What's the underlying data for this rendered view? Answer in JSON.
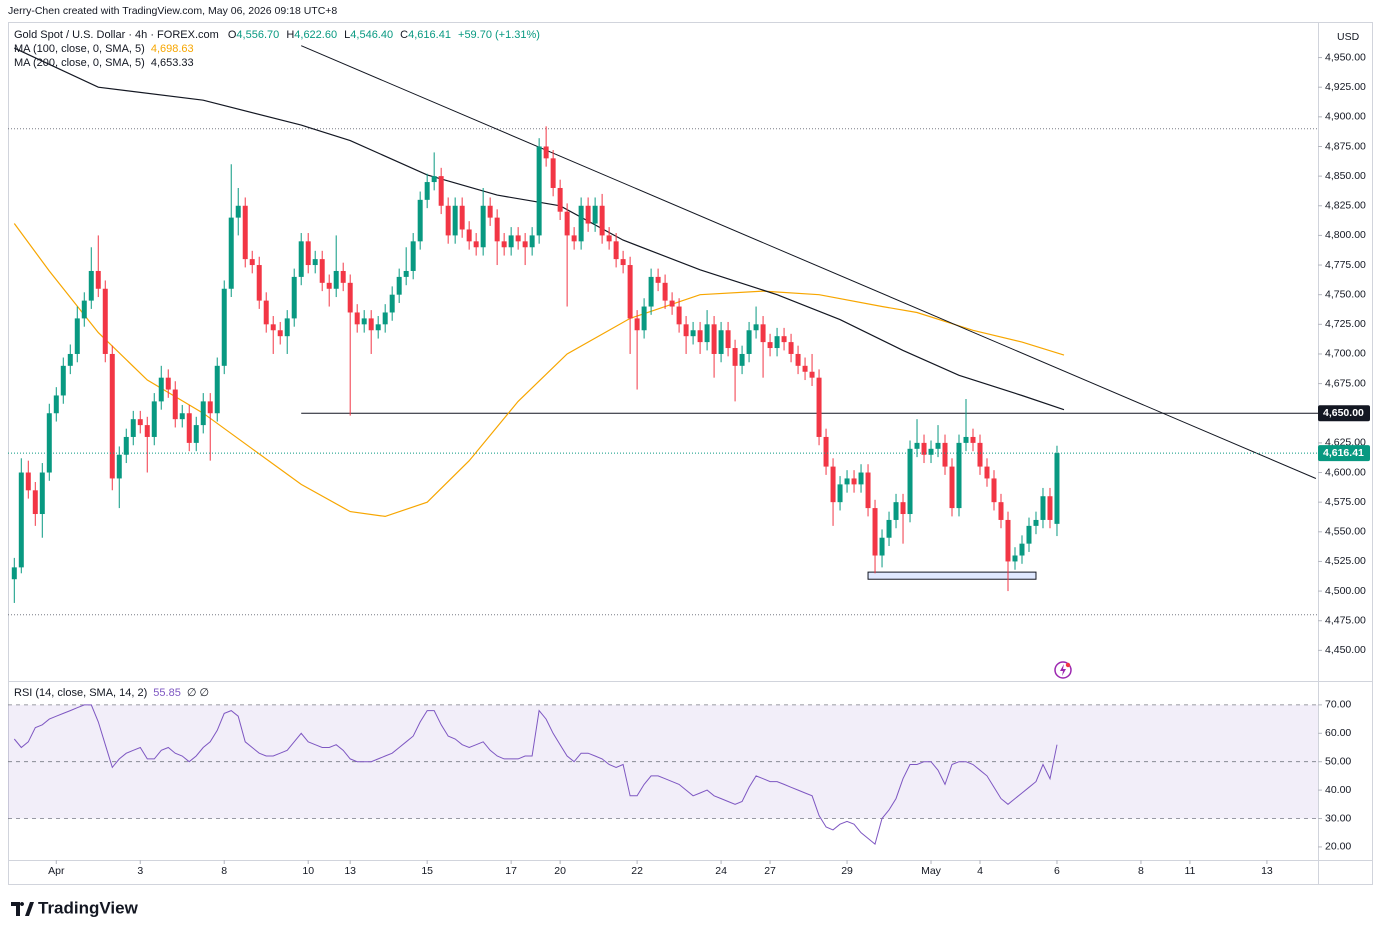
{
  "header": {
    "credit": "Jerry-Chen created with TradingView.com, May 06, 2026 09:18 UTC+8",
    "brand": "TradingView"
  },
  "chart_data": {
    "type": "candlestick",
    "legend": {
      "symbol": "Gold Spot / U.S. Dollar · 4h · FOREX.com",
      "ohlc_labels": [
        "O",
        "H",
        "L",
        "C"
      ],
      "open": "4,556.70",
      "high": "4,622.60",
      "low": "4,546.40",
      "close": "4,616.41",
      "change": "+59.70 (+1.31%)"
    },
    "currency": "USD",
    "up_color": "#089981",
    "down_color": "#f23645",
    "xlim": [
      -0.9,
      186.3
    ],
    "ylim": [
      4425,
      4980
    ],
    "yticks": [
      {
        "value": 4450,
        "label": "4,450.00"
      },
      {
        "value": 4475,
        "label": "4,475.00"
      },
      {
        "value": 4500,
        "label": "4,500.00"
      },
      {
        "value": 4525,
        "label": "4,525.00"
      },
      {
        "value": 4550,
        "label": "4,550.00"
      },
      {
        "value": 4575,
        "label": "4,575.00"
      },
      {
        "value": 4600,
        "label": "4,600.00"
      },
      {
        "value": 4625,
        "label": "4,625.00"
      },
      {
        "value": 4650,
        "label": "4,650.00"
      },
      {
        "value": 4675,
        "label": "4,675.00"
      },
      {
        "value": 4700,
        "label": "4,700.00"
      },
      {
        "value": 4725,
        "label": "4,725.00"
      },
      {
        "value": 4750,
        "label": "4,750.00"
      },
      {
        "value": 4775,
        "label": "4,775.00"
      },
      {
        "value": 4800,
        "label": "4,800.00"
      },
      {
        "value": 4825,
        "label": "4,825.00"
      },
      {
        "value": 4850,
        "label": "4,850.00"
      },
      {
        "value": 4875,
        "label": "4,875.00"
      },
      {
        "value": 4900,
        "label": "4,900.00"
      },
      {
        "value": 4925,
        "label": "4,925.00"
      },
      {
        "value": 4950,
        "label": "4,950.00"
      }
    ],
    "xticks": [
      {
        "value": 6,
        "label": "Apr"
      },
      {
        "value": 18,
        "label": "3"
      },
      {
        "value": 30,
        "label": "8"
      },
      {
        "value": 42,
        "label": "10"
      },
      {
        "value": 48,
        "label": "13"
      },
      {
        "value": 59,
        "label": "15"
      },
      {
        "value": 71,
        "label": "17"
      },
      {
        "value": 78,
        "label": "20"
      },
      {
        "value": 89,
        "label": "22"
      },
      {
        "value": 101,
        "label": "24"
      },
      {
        "value": 108,
        "label": "27"
      },
      {
        "value": 119,
        "label": "29"
      },
      {
        "value": 131,
        "label": "May"
      },
      {
        "value": 138,
        "label": "4"
      },
      {
        "value": 149,
        "label": "6"
      },
      {
        "value": 161,
        "label": "8"
      },
      {
        "value": 168,
        "label": "11"
      },
      {
        "value": 179,
        "label": "13"
      }
    ],
    "candles": [
      [
        4510,
        4528,
        4490,
        4520
      ],
      [
        4520,
        4612,
        4515,
        4600
      ],
      [
        4600,
        4610,
        4578,
        4585
      ],
      [
        4585,
        4592,
        4555,
        4565
      ],
      [
        4565,
        4608,
        4545,
        4600
      ],
      [
        4600,
        4658,
        4593,
        4650
      ],
      [
        4650,
        4672,
        4643,
        4665
      ],
      [
        4665,
        4697,
        4658,
        4690
      ],
      [
        4690,
        4708,
        4683,
        4700
      ],
      [
        4700,
        4740,
        4693,
        4730
      ],
      [
        4730,
        4752,
        4723,
        4745
      ],
      [
        4745,
        4790,
        4738,
        4770
      ],
      [
        4770,
        4800,
        4748,
        4755
      ],
      [
        4755,
        4762,
        4693,
        4700
      ],
      [
        4700,
        4707,
        4585,
        4595
      ],
      [
        4595,
        4622,
        4570,
        4615
      ],
      [
        4615,
        4637,
        4608,
        4630
      ],
      [
        4630,
        4652,
        4623,
        4645
      ],
      [
        4645,
        4652,
        4633,
        4640
      ],
      [
        4640,
        4647,
        4600,
        4630
      ],
      [
        4630,
        4667,
        4623,
        4660
      ],
      [
        4660,
        4690,
        4653,
        4680
      ],
      [
        4680,
        4687,
        4663,
        4670
      ],
      [
        4670,
        4677,
        4638,
        4645
      ],
      [
        4645,
        4657,
        4638,
        4650
      ],
      [
        4650,
        4657,
        4618,
        4625
      ],
      [
        4625,
        4647,
        4618,
        4640
      ],
      [
        4640,
        4667,
        4633,
        4660
      ],
      [
        4660,
        4667,
        4610,
        4650
      ],
      [
        4650,
        4697,
        4643,
        4690
      ],
      [
        4690,
        4762,
        4683,
        4755
      ],
      [
        4755,
        4860,
        4748,
        4815
      ],
      [
        4815,
        4840,
        4800,
        4825
      ],
      [
        4825,
        4832,
        4773,
        4780
      ],
      [
        4780,
        4787,
        4768,
        4775
      ],
      [
        4775,
        4782,
        4738,
        4745
      ],
      [
        4745,
        4752,
        4718,
        4725
      ],
      [
        4725,
        4732,
        4700,
        4720
      ],
      [
        4720,
        4727,
        4708,
        4715
      ],
      [
        4715,
        4737,
        4700,
        4730
      ],
      [
        4730,
        4772,
        4723,
        4765
      ],
      [
        4765,
        4802,
        4758,
        4795
      ],
      [
        4795,
        4802,
        4768,
        4775
      ],
      [
        4775,
        4787,
        4768,
        4780
      ],
      [
        4780,
        4787,
        4753,
        4760
      ],
      [
        4760,
        4767,
        4740,
        4755
      ],
      [
        4755,
        4800,
        4748,
        4770
      ],
      [
        4770,
        4777,
        4753,
        4760
      ],
      [
        4760,
        4767,
        4648,
        4735
      ],
      [
        4735,
        4742,
        4718,
        4725
      ],
      [
        4725,
        4737,
        4718,
        4730
      ],
      [
        4730,
        4737,
        4700,
        4720
      ],
      [
        4720,
        4732,
        4713,
        4725
      ],
      [
        4725,
        4742,
        4718,
        4735
      ],
      [
        4735,
        4757,
        4728,
        4750
      ],
      [
        4750,
        4772,
        4743,
        4765
      ],
      [
        4765,
        4790,
        4758,
        4770
      ],
      [
        4770,
        4802,
        4763,
        4795
      ],
      [
        4795,
        4837,
        4788,
        4830
      ],
      [
        4830,
        4852,
        4823,
        4845
      ],
      [
        4845,
        4870,
        4838,
        4850
      ],
      [
        4850,
        4857,
        4818,
        4825
      ],
      [
        4825,
        4832,
        4793,
        4800
      ],
      [
        4800,
        4832,
        4793,
        4825
      ],
      [
        4825,
        4832,
        4798,
        4805
      ],
      [
        4805,
        4812,
        4788,
        4795
      ],
      [
        4795,
        4802,
        4783,
        4790
      ],
      [
        4790,
        4840,
        4783,
        4825
      ],
      [
        4825,
        4832,
        4808,
        4815
      ],
      [
        4815,
        4822,
        4775,
        4795
      ],
      [
        4795,
        4802,
        4783,
        4790
      ],
      [
        4790,
        4807,
        4783,
        4800
      ],
      [
        4800,
        4807,
        4788,
        4795
      ],
      [
        4795,
        4802,
        4775,
        4790
      ],
      [
        4790,
        4807,
        4783,
        4800
      ],
      [
        4800,
        4882,
        4793,
        4875
      ],
      [
        4875,
        4892,
        4858,
        4865
      ],
      [
        4865,
        4872,
        4833,
        4840
      ],
      [
        4840,
        4847,
        4813,
        4820
      ],
      [
        4820,
        4827,
        4740,
        4800
      ],
      [
        4800,
        4807,
        4788,
        4795
      ],
      [
        4795,
        4832,
        4788,
        4825
      ],
      [
        4825,
        4832,
        4803,
        4810
      ],
      [
        4810,
        4832,
        4803,
        4825
      ],
      [
        4825,
        4835,
        4793,
        4800
      ],
      [
        4800,
        4807,
        4788,
        4795
      ],
      [
        4795,
        4802,
        4773,
        4780
      ],
      [
        4780,
        4787,
        4768,
        4775
      ],
      [
        4775,
        4782,
        4700,
        4730
      ],
      [
        4730,
        4737,
        4670,
        4720
      ],
      [
        4720,
        4747,
        4713,
        4740
      ],
      [
        4740,
        4772,
        4733,
        4765
      ],
      [
        4765,
        4772,
        4753,
        4760
      ],
      [
        4760,
        4767,
        4738,
        4745
      ],
      [
        4745,
        4752,
        4733,
        4740
      ],
      [
        4740,
        4747,
        4718,
        4725
      ],
      [
        4725,
        4732,
        4700,
        4715
      ],
      [
        4715,
        4727,
        4708,
        4720
      ],
      [
        4720,
        4727,
        4700,
        4710
      ],
      [
        4710,
        4737,
        4703,
        4725
      ],
      [
        4725,
        4732,
        4680,
        4700
      ],
      [
        4700,
        4727,
        4693,
        4720
      ],
      [
        4720,
        4727,
        4698,
        4705
      ],
      [
        4705,
        4712,
        4660,
        4690
      ],
      [
        4690,
        4707,
        4683,
        4700
      ],
      [
        4700,
        4727,
        4693,
        4720
      ],
      [
        4720,
        4740,
        4713,
        4725
      ],
      [
        4725,
        4732,
        4680,
        4710
      ],
      [
        4710,
        4717,
        4698,
        4705
      ],
      [
        4705,
        4722,
        4698,
        4715
      ],
      [
        4715,
        4722,
        4703,
        4710
      ],
      [
        4710,
        4717,
        4693,
        4700
      ],
      [
        4700,
        4707,
        4683,
        4690
      ],
      [
        4690,
        4697,
        4678,
        4685
      ],
      [
        4685,
        4700,
        4673,
        4680
      ],
      [
        4680,
        4687,
        4623,
        4630
      ],
      [
        4630,
        4637,
        4598,
        4605
      ],
      [
        4605,
        4612,
        4555,
        4575
      ],
      [
        4575,
        4597,
        4568,
        4590
      ],
      [
        4590,
        4602,
        4583,
        4595
      ],
      [
        4595,
        4602,
        4583,
        4590
      ],
      [
        4590,
        4607,
        4583,
        4600
      ],
      [
        4600,
        4607,
        4563,
        4570
      ],
      [
        4570,
        4577,
        4515,
        4530
      ],
      [
        4530,
        4552,
        4520,
        4545
      ],
      [
        4545,
        4567,
        4538,
        4560
      ],
      [
        4560,
        4582,
        4553,
        4575
      ],
      [
        4575,
        4582,
        4540,
        4565
      ],
      [
        4565,
        4627,
        4558,
        4620
      ],
      [
        4620,
        4645,
        4613,
        4625
      ],
      [
        4625,
        4632,
        4608,
        4615
      ],
      [
        4615,
        4627,
        4608,
        4620
      ],
      [
        4620,
        4640,
        4613,
        4625
      ],
      [
        4625,
        4632,
        4598,
        4605
      ],
      [
        4605,
        4612,
        4563,
        4570
      ],
      [
        4570,
        4632,
        4563,
        4625
      ],
      [
        4625,
        4662,
        4618,
        4630
      ],
      [
        4630,
        4637,
        4618,
        4625
      ],
      [
        4625,
        4632,
        4598,
        4605
      ],
      [
        4605,
        4612,
        4588,
        4595
      ],
      [
        4595,
        4602,
        4568,
        4575
      ],
      [
        4575,
        4582,
        4553,
        4560
      ],
      [
        4560,
        4567,
        4500,
        4525
      ],
      [
        4525,
        4537,
        4518,
        4530
      ],
      [
        4530,
        4547,
        4523,
        4540
      ],
      [
        4540,
        4562,
        4533,
        4555
      ],
      [
        4555,
        4567,
        4548,
        4560
      ],
      [
        4560,
        4587,
        4553,
        4580
      ],
      [
        4580,
        4587,
        4553,
        4560
      ],
      [
        4556.7,
        4622.6,
        4546.4,
        4616.41
      ]
    ],
    "moving_averages": [
      {
        "name": "MA (100, close, 0, SMA, 5)",
        "value_label": "4,698.63",
        "color": "#f7a600",
        "x": [
          0,
          5,
          12,
          19,
          27,
          34,
          41,
          48,
          53,
          59,
          65,
          72,
          79,
          88,
          98,
          107,
          115,
          124,
          129,
          137,
          144,
          150
        ],
        "values": [
          4810,
          4770,
          4718,
          4678,
          4650,
          4620,
          4590,
          4567,
          4563,
          4575,
          4610,
          4660,
          4700,
          4730,
          4750,
          4753,
          4750,
          4740,
          4735,
          4720,
          4710,
          4699
        ]
      },
      {
        "name": "MA (200, close, 0, SMA, 5)",
        "value_label": "4,653.33",
        "color": "#131722",
        "x": [
          0,
          12,
          27,
          41,
          48,
          59,
          69,
          78,
          87,
          98,
          109,
          118,
          127,
          135,
          144,
          150
        ],
        "values": [
          4958,
          4925,
          4914,
          4893,
          4880,
          4851,
          4834,
          4825,
          4796,
          4771,
          4750,
          4729,
          4703,
          4682,
          4665,
          4653
        ]
      }
    ],
    "trendline": {
      "x": [
        41,
        186
      ],
      "values": [
        4960,
        4595
      ]
    },
    "horizontal_line": {
      "x_start": 41,
      "value": 4650,
      "label": "4,650.00"
    },
    "dotted_levels": [
      4890,
      4480
    ],
    "zone": {
      "x": [
        122,
        146
      ],
      "values": [
        4510,
        4516
      ]
    },
    "rsi": {
      "name": "RSI (14, close, SMA, 14, 2)",
      "value_label": "55.85",
      "extra": "∅ ∅",
      "color": "#7e57c2",
      "ylim": [
        15.4,
        77.7
      ],
      "band": [
        30,
        70
      ],
      "levels": [
        30,
        50,
        70
      ],
      "yticks": [
        {
          "value": 20,
          "label": "20.00"
        },
        {
          "value": 30,
          "label": "30.00"
        },
        {
          "value": 40,
          "label": "40.00"
        },
        {
          "value": 50,
          "label": "50.00"
        },
        {
          "value": 60,
          "label": "60.00"
        },
        {
          "value": 70,
          "label": "70.00"
        }
      ],
      "values": [
        58,
        55,
        57,
        62,
        63,
        65,
        66,
        67,
        68,
        69,
        70,
        70,
        64,
        56,
        48,
        51,
        53,
        54,
        55,
        51,
        51,
        54,
        55,
        53,
        52,
        50,
        52,
        55,
        57,
        61,
        67,
        68,
        66,
        57,
        55,
        53,
        52,
        52,
        53,
        54,
        57,
        60,
        57,
        56,
        55,
        55,
        56,
        54,
        51,
        50,
        50,
        50,
        51,
        52,
        53,
        55,
        57,
        59,
        64,
        68,
        68,
        63,
        59,
        58,
        56,
        55,
        56,
        57,
        54,
        52,
        51,
        51,
        51,
        52,
        52,
        68,
        65,
        60,
        56,
        52,
        50,
        53,
        53,
        52,
        51,
        49,
        48,
        49,
        38,
        38,
        42,
        45,
        45,
        44,
        43,
        42,
        40,
        38,
        39,
        40,
        38,
        37,
        36,
        35,
        36,
        41,
        45,
        44,
        43,
        43,
        42,
        41,
        40,
        39,
        38,
        31,
        27,
        26,
        28,
        29,
        28,
        25,
        23,
        21,
        30,
        33,
        37,
        44,
        49,
        49,
        50,
        50,
        47,
        42,
        49,
        50,
        50,
        49,
        47,
        45,
        41,
        37,
        35,
        37,
        39,
        41,
        43,
        49,
        44,
        56
      ]
    }
  }
}
